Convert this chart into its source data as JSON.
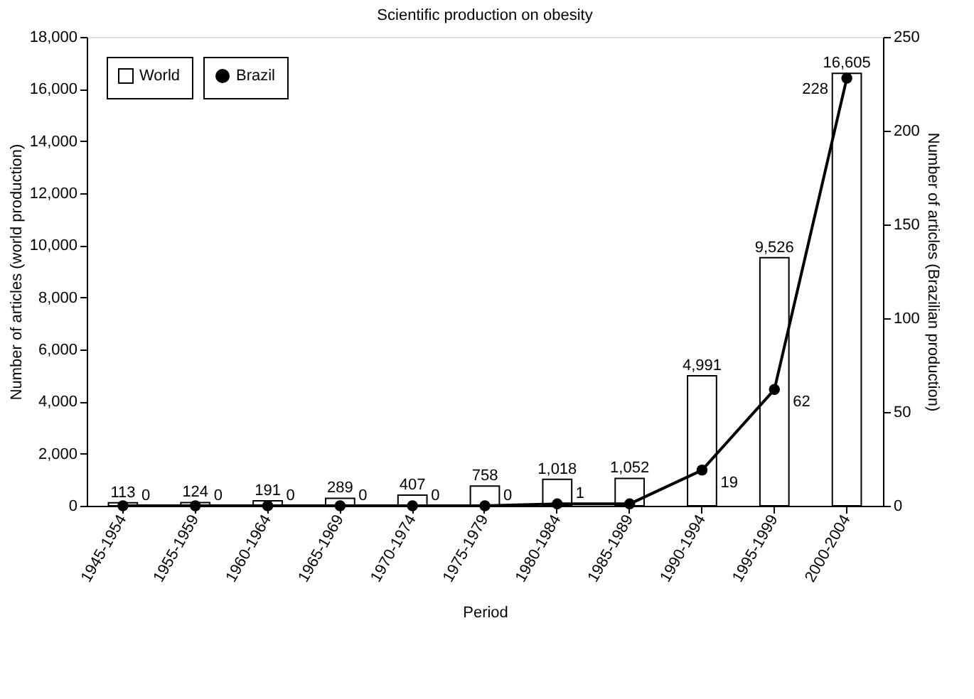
{
  "chart_data": {
    "type": "bar",
    "title": "Scientific production on obesity",
    "xlabel": "Period",
    "ylabel": "Number of articles (world production)",
    "y2label": "Number of articles (Brazilian production)",
    "categories": [
      "1945-1954",
      "1955-1959",
      "1960-1964",
      "1965-1969",
      "1970-1974",
      "1975-1979",
      "1980-1984",
      "1985-1989",
      "1990-1994",
      "1995-1999",
      "2000-2004"
    ],
    "series": [
      {
        "name": "World",
        "type": "bar",
        "color": "#ffffff",
        "values": [
          113,
          124,
          191,
          289,
          407,
          758,
          1018,
          1052,
          4991,
          9526,
          16605
        ],
        "value_labels": [
          "113",
          "124",
          "191",
          "289",
          "407",
          "758",
          "1,018",
          "1,052",
          "4,991",
          "9,526",
          "16,605"
        ]
      },
      {
        "name": "Brazil",
        "type": "line",
        "axis": "y2",
        "color": "#000000",
        "marker": "circle",
        "values": [
          0,
          0,
          0,
          0,
          0,
          0,
          1,
          1,
          19,
          62,
          228
        ],
        "value_labels": [
          "0",
          "0",
          "0",
          "0",
          "0",
          "0",
          "1",
          null,
          "19",
          "62",
          "228"
        ]
      }
    ],
    "ylim": [
      0,
      18000
    ],
    "yticks": [
      {
        "value": 0,
        "label": "0"
      },
      {
        "value": 2000,
        "label": "2,000"
      },
      {
        "value": 4000,
        "label": "4,000"
      },
      {
        "value": 6000,
        "label": "6,000"
      },
      {
        "value": 8000,
        "label": "8,000"
      },
      {
        "value": 10000,
        "label": "10,000"
      },
      {
        "value": 12000,
        "label": "12,000"
      },
      {
        "value": 14000,
        "label": "14,000"
      },
      {
        "value": 16000,
        "label": "16,000"
      },
      {
        "value": 18000,
        "label": "18,000"
      }
    ],
    "y2lim": [
      0,
      250
    ],
    "y2ticks": [
      0,
      50,
      100,
      150,
      200,
      250
    ],
    "grid": false,
    "legend": "top left"
  }
}
